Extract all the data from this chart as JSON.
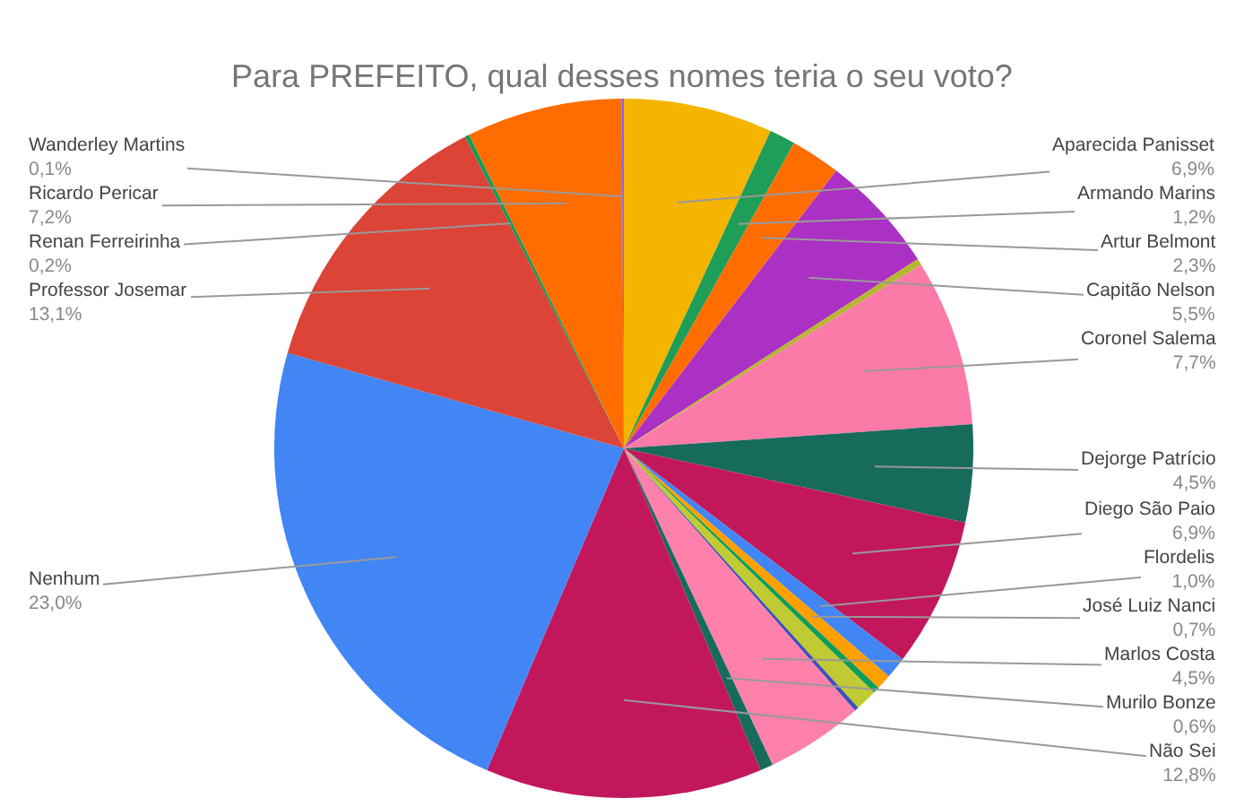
{
  "chart_data": {
    "type": "pie",
    "title": "Para PREFEITO, qual desses nomes teria o seu voto?",
    "categories": [
      "Aparecida Panisset",
      "Armando Marins",
      "Artur Belmont",
      "Capitão Nelson",
      null,
      "Coronel Salema",
      "Dejorge Patrício",
      "Diego São Paio",
      "Flordelis",
      "José Luiz Nanci",
      null,
      null,
      null,
      "Marlos Costa",
      "Murilo Bonze",
      "Não Sei",
      "Nenhum",
      "Professor Josemar",
      "Renan Ferreirinha",
      "Ricardo Pericar",
      "Wanderley Martins"
    ],
    "values": [
      6.9,
      1.2,
      2.3,
      5.5,
      0.3,
      7.7,
      4.5,
      6.9,
      1.0,
      0.7,
      0.3,
      1.0,
      0.2,
      4.5,
      0.6,
      12.8,
      23.0,
      13.1,
      0.2,
      7.2,
      0.1
    ],
    "value_labels": [
      "6,9%",
      "1,2%",
      "2,3%",
      "5,5%",
      null,
      "7,7%",
      "4,5%",
      "6,9%",
      "1,0%",
      "0,7%",
      null,
      null,
      null,
      "4,5%",
      "0,6%",
      "12,8%",
      "23,0%",
      "13,1%",
      "0,2%",
      "7,2%",
      "0,1%"
    ],
    "colors": [
      "#f4b400",
      "#1e9e57",
      "#ff6d01",
      "#ab30c4",
      "#b5b82e",
      "#fb7aa8",
      "#176b5b",
      "#c2185b",
      "#4285f4",
      "#ff9f00",
      "#0f9d58",
      "#c0ca33",
      "#3f51b5",
      "#ff80ab",
      "#176b5b",
      "#c2185b",
      "#4285f4",
      "#db4437",
      "#0f9d58",
      "#ff6d01",
      "#7b61ff"
    ]
  }
}
